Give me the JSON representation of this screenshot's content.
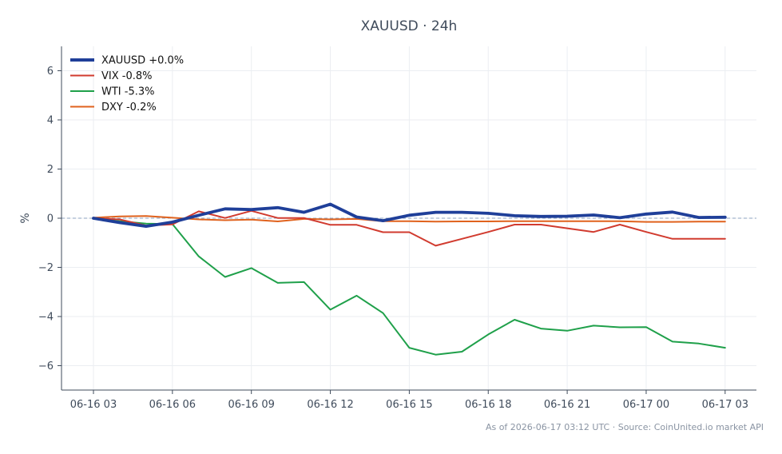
{
  "chart_data": {
    "type": "line",
    "title": "XAUUSD · 24h",
    "ylabel": "%",
    "xlabel": "",
    "ylim": [
      -7,
      7
    ],
    "yticks": [
      -6,
      -4,
      -2,
      0,
      2,
      4,
      6
    ],
    "ytick_labels": [
      "−6",
      "−4",
      "−2",
      "0",
      "2",
      "4",
      "6"
    ],
    "xticks": [
      0,
      3,
      6,
      9,
      12,
      15,
      18,
      21,
      24
    ],
    "xtick_labels": [
      "06-16 03",
      "06-16 06",
      "06-16 09",
      "06-16 12",
      "06-16 15",
      "06-16 18",
      "06-16 21",
      "06-17 00",
      "06-17 03"
    ],
    "x_unit": "hours from 06-16 03:00",
    "x": [
      0,
      1,
      2,
      3,
      4,
      5,
      6,
      7,
      8,
      9,
      10,
      11,
      12,
      13,
      14,
      15,
      16,
      17,
      18,
      19,
      20,
      21,
      22,
      23,
      24
    ],
    "grid": true,
    "baseline": 0,
    "legend_position": "top-left",
    "series": [
      {
        "name": "XAUUSD +0.0%",
        "color": "#1f3f99",
        "width": "thick",
        "values": [
          0.0,
          -0.18,
          -0.33,
          -0.16,
          0.12,
          0.38,
          0.35,
          0.43,
          0.24,
          0.57,
          0.05,
          -0.1,
          0.12,
          0.24,
          0.24,
          0.2,
          0.1,
          0.07,
          0.08,
          0.13,
          0.02,
          0.17,
          0.25,
          0.03,
          0.04
        ]
      },
      {
        "name": "VIX -0.8%",
        "color": "#d13b2f",
        "width": "normal",
        "values": [
          0.0,
          -0.05,
          -0.3,
          -0.25,
          0.28,
          0.01,
          0.3,
          0.01,
          0.01,
          -0.27,
          -0.27,
          -0.57,
          -0.57,
          -1.12,
          -0.84,
          -0.56,
          -0.26,
          -0.26,
          -0.41,
          -0.56,
          -0.26,
          -0.56,
          -0.84,
          -0.84,
          -0.84
        ]
      },
      {
        "name": "WTI -5.3%",
        "color": "#1fa04a",
        "width": "normal",
        "values": [
          0.0,
          -0.12,
          -0.22,
          -0.24,
          -1.55,
          -2.39,
          -2.03,
          -2.63,
          -2.6,
          -3.72,
          -3.15,
          -3.86,
          -5.27,
          -5.55,
          -5.43,
          -4.73,
          -4.13,
          -4.49,
          -4.58,
          -4.37,
          -4.44,
          -4.43,
          -5.02,
          -5.1,
          -5.27
        ]
      },
      {
        "name": "DXY -0.2%",
        "color": "#e0621d",
        "width": "normal",
        "values": [
          0.02,
          0.07,
          0.09,
          0.02,
          -0.05,
          -0.08,
          -0.06,
          -0.13,
          -0.03,
          -0.05,
          -0.03,
          -0.12,
          -0.12,
          -0.14,
          -0.13,
          -0.13,
          -0.12,
          -0.12,
          -0.12,
          -0.12,
          -0.12,
          -0.15,
          -0.15,
          -0.14,
          -0.14
        ]
      }
    ]
  },
  "footer": {
    "source_text": "As of 2026-06-17 03:12 UTC · Source: CoinUnited.io market API"
  }
}
